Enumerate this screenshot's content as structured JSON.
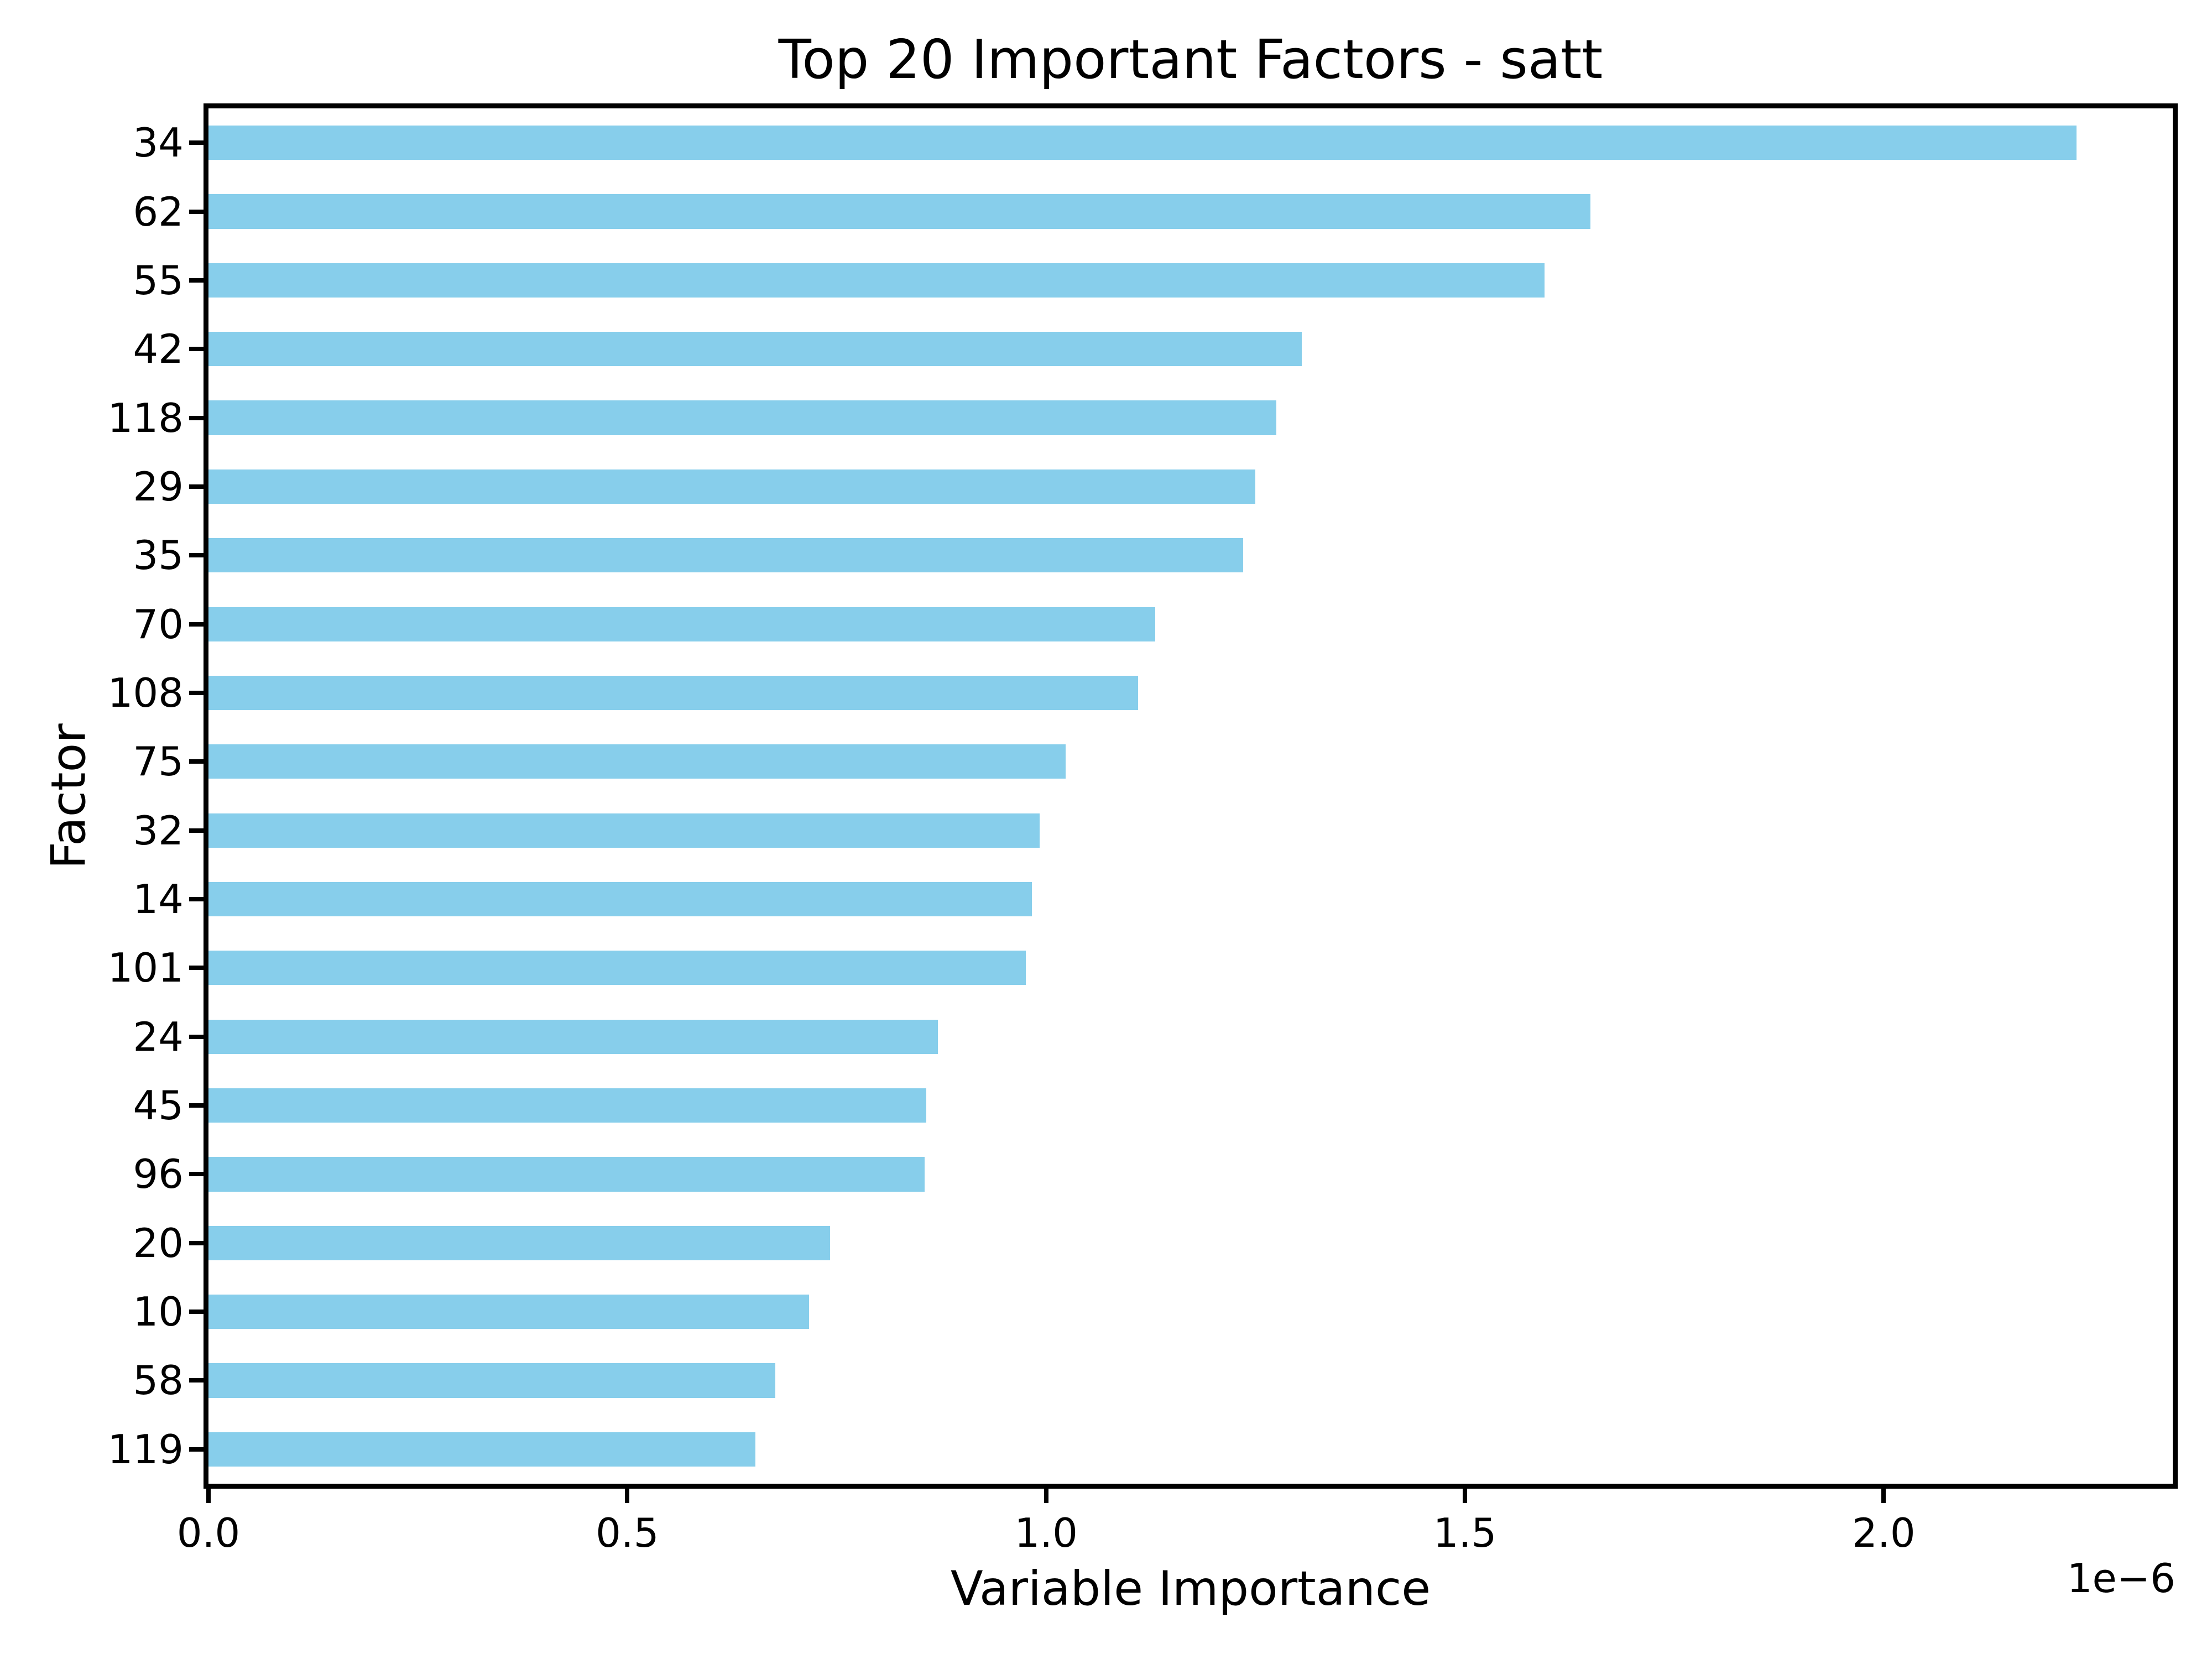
{
  "figure": {
    "title": "Top 20 Important Factors - satt",
    "xlabel": "Variable Importance",
    "ylabel": "Factor",
    "offset_label": "1e−6",
    "background_color": "#ffffff",
    "spine_color": "#000000",
    "text_color": "#000000"
  },
  "chart_data": {
    "type": "bar",
    "orientation": "horizontal",
    "title": "Top 20 Important Factors - satt",
    "xlabel": "Variable Importance",
    "ylabel": "Factor",
    "x_unit_multiplier": "1e-6",
    "categories": [
      "34",
      "62",
      "55",
      "42",
      "118",
      "29",
      "35",
      "70",
      "108",
      "75",
      "32",
      "14",
      "101",
      "24",
      "45",
      "96",
      "20",
      "10",
      "58",
      "119"
    ],
    "values": [
      2.23,
      1.65,
      1.595,
      1.305,
      1.275,
      1.25,
      1.235,
      1.13,
      1.11,
      1.023,
      0.992,
      0.983,
      0.976,
      0.871,
      0.857,
      0.855,
      0.742,
      0.717,
      0.677,
      0.653
    ],
    "values_note": "values are in units of 1e-6",
    "xlim": [
      0,
      2.345
    ],
    "xticks": [
      0.0,
      0.5,
      1.0,
      1.5,
      2.0
    ],
    "xtick_labels": [
      "0.0",
      "0.5",
      "1.0",
      "1.5",
      "2.0"
    ],
    "grid": false,
    "legend_position": "none",
    "bar_color": "#87CEEB",
    "bar_relative_height": 0.5
  }
}
